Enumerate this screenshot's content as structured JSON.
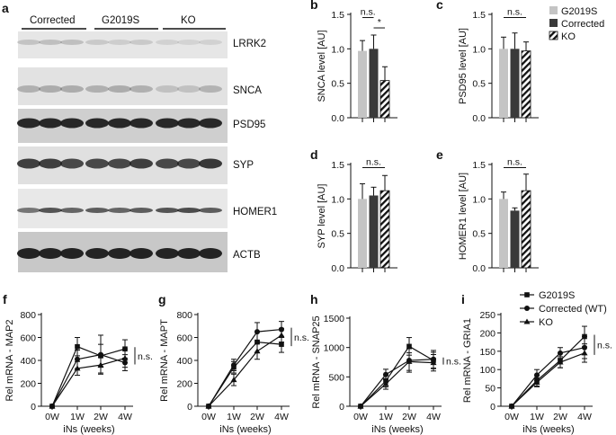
{
  "panel_a": {
    "letter": "a",
    "groups": [
      "Corrected",
      "G2019S",
      "KO"
    ],
    "blots": [
      "LRRK2",
      "SNCA",
      "PSD95",
      "SYP",
      "HOMER1",
      "ACTB"
    ]
  },
  "colors": {
    "G2019S": "#c4c4c4",
    "Corrected": "#3a3a3a",
    "KO": "#ffffff",
    "ink": "#111111"
  },
  "legend_bar": [
    "G2019S",
    "Corrected",
    "KO"
  ],
  "legend_line": [
    "G2019S",
    "Corrected (WT)",
    "KO"
  ],
  "chart_data": [
    {
      "panel": "b",
      "type": "bar",
      "ylabel": "SNCA level [AU]",
      "ylim": [
        0,
        1.5
      ],
      "yticks": [
        "0.0",
        "0.5",
        "1.0",
        "1.5"
      ],
      "series": [
        {
          "name": "G2019S",
          "value": 0.97,
          "err": 0.15
        },
        {
          "name": "Corrected",
          "value": 1.0,
          "err": 0.2
        },
        {
          "name": "KO",
          "value": 0.54,
          "err": 0.2
        }
      ],
      "annotations": [
        {
          "text": "n.s.",
          "from": 0,
          "to": 1,
          "level": 1.48
        },
        {
          "text": "*",
          "from": 1,
          "to": 2,
          "level": 1.33
        }
      ]
    },
    {
      "panel": "c",
      "type": "bar",
      "ylabel": "PSD95  level [AU]",
      "ylim": [
        0,
        1.5
      ],
      "yticks": [
        "0.0",
        "0.5",
        "1.0",
        "1.5"
      ],
      "series": [
        {
          "name": "G2019S",
          "value": 1.0,
          "err": 0.17
        },
        {
          "name": "Corrected",
          "value": 1.0,
          "err": 0.23
        },
        {
          "name": "KO",
          "value": 0.97,
          "err": 0.13
        }
      ],
      "annotations": [
        {
          "text": "n.s.",
          "from": 0,
          "to": 2,
          "level": 1.48
        }
      ]
    },
    {
      "panel": "d",
      "type": "bar",
      "ylabel": "SYP  level [AU]",
      "ylim": [
        0,
        1.5
      ],
      "yticks": [
        "0.0",
        "0.5",
        "1.0",
        "1.5"
      ],
      "series": [
        {
          "name": "G2019S",
          "value": 1.0,
          "err": 0.22
        },
        {
          "name": "Corrected",
          "value": 1.05,
          "err": 0.12
        },
        {
          "name": "KO",
          "value": 1.12,
          "err": 0.22
        }
      ],
      "annotations": [
        {
          "text": "n.s.",
          "from": 0,
          "to": 2,
          "level": 1.48
        }
      ]
    },
    {
      "panel": "e",
      "type": "bar",
      "ylabel": "HOMER1 level [AU]",
      "ylim": [
        0,
        1.5
      ],
      "yticks": [
        "0.0",
        "0.5",
        "1.0",
        "1.5"
      ],
      "series": [
        {
          "name": "G2019S",
          "value": 1.0,
          "err": 0.1
        },
        {
          "name": "Corrected",
          "value": 0.83,
          "err": 0.04
        },
        {
          "name": "KO",
          "value": 1.12,
          "err": 0.24
        }
      ],
      "annotations": [
        {
          "text": "n.s.",
          "from": 0,
          "to": 2,
          "level": 1.48
        }
      ]
    },
    {
      "panel": "f",
      "type": "line",
      "ylabel": "Rel mRNA - MAP2",
      "xlabel": "iNs (weeks)",
      "categories": [
        "0W",
        "1W",
        "2W",
        "4W"
      ],
      "ylim": [
        0,
        800
      ],
      "yticks": [
        "0",
        "200",
        "400",
        "600",
        "800"
      ],
      "ns": "n.s.",
      "series": [
        {
          "name": "G2019S",
          "values": [
            0,
            520,
            440,
            500
          ],
          "err": [
            0,
            80,
            100,
            80
          ]
        },
        {
          "name": "Corrected (WT)",
          "values": [
            0,
            410,
            450,
            380
          ],
          "err": [
            0,
            80,
            170,
            70
          ]
        },
        {
          "name": "KO",
          "values": [
            0,
            330,
            360,
            420
          ],
          "err": [
            0,
            60,
            70,
            80
          ]
        }
      ]
    },
    {
      "panel": "g",
      "type": "line",
      "ylabel": "Rel mRNA - MAPT",
      "xlabel": "iNs (weeks)",
      "categories": [
        "0W",
        "1W",
        "2W",
        "4W"
      ],
      "ylim": [
        0,
        800
      ],
      "yticks": [
        "0",
        "200",
        "400",
        "600",
        "800"
      ],
      "ns": "n.s.",
      "series": [
        {
          "name": "G2019S",
          "values": [
            0,
            340,
            560,
            540
          ],
          "err": [
            0,
            50,
            90,
            70
          ]
        },
        {
          "name": "Corrected (WT)",
          "values": [
            0,
            360,
            650,
            670
          ],
          "err": [
            0,
            50,
            80,
            70
          ]
        },
        {
          "name": "KO",
          "values": [
            0,
            230,
            480,
            620
          ],
          "err": [
            0,
            50,
            70,
            60
          ]
        }
      ]
    },
    {
      "panel": "h",
      "type": "line",
      "ylabel": "Rel mRNA - SNAP25",
      "xlabel": "iNs (weeks)",
      "categories": [
        "0W",
        "1W",
        "2W",
        "4W"
      ],
      "ylim": [
        0,
        1500
      ],
      "yticks": [
        "0",
        "500",
        "1000",
        "1500"
      ],
      "ns": "n.s.",
      "series": [
        {
          "name": "G2019S",
          "values": [
            0,
            430,
            1020,
            780
          ],
          "err": [
            0,
            100,
            150,
            140
          ]
        },
        {
          "name": "Corrected (WT)",
          "values": [
            0,
            540,
            780,
            800
          ],
          "err": [
            0,
            90,
            200,
            150
          ]
        },
        {
          "name": "KO",
          "values": [
            0,
            380,
            760,
            740
          ],
          "err": [
            0,
            90,
            150,
            140
          ]
        }
      ]
    },
    {
      "panel": "i",
      "type": "line",
      "ylabel": "Rel mRNA - GRIA1",
      "xlabel": "iNs (weeks)",
      "categories": [
        "0W",
        "1W",
        "2W",
        "4W"
      ],
      "ylim": [
        0,
        250
      ],
      "yticks": [
        "0",
        "50",
        "100",
        "150",
        "200",
        "250"
      ],
      "ns": "n.s.",
      "series": [
        {
          "name": "G2019S",
          "values": [
            0,
            70,
            125,
            190
          ],
          "err": [
            0,
            15,
            20,
            28
          ]
        },
        {
          "name": "Corrected (WT)",
          "values": [
            0,
            85,
            145,
            160
          ],
          "err": [
            0,
            15,
            15,
            30
          ]
        },
        {
          "name": "KO",
          "values": [
            0,
            65,
            120,
            145
          ],
          "err": [
            0,
            12,
            15,
            25
          ]
        }
      ]
    }
  ]
}
